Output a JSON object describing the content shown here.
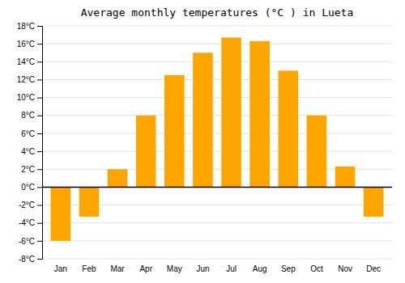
{
  "chart_data": {
    "type": "bar",
    "title": "Average monthly temperatures (°C ) in Lueta",
    "categories": [
      "Jan",
      "Feb",
      "Mar",
      "Apr",
      "May",
      "Jun",
      "Jul",
      "Aug",
      "Sep",
      "Oct",
      "Nov",
      "Dec"
    ],
    "values": [
      -6.0,
      -3.3,
      2.0,
      8.0,
      12.5,
      15.0,
      16.7,
      16.3,
      13.0,
      8.0,
      2.3,
      -3.3
    ],
    "color": "#FFA500",
    "ylim": [
      -8,
      18
    ],
    "yticks": [
      {
        "value": -8,
        "label": "-8°C"
      },
      {
        "value": -6,
        "label": "-6°C"
      },
      {
        "value": -4,
        "label": "-4°C"
      },
      {
        "value": -2,
        "label": "-2°C"
      },
      {
        "value": 0,
        "label": "0°C"
      },
      {
        "value": 2,
        "label": "2°C"
      },
      {
        "value": 4,
        "label": "4°C"
      },
      {
        "value": 6,
        "label": "6°C"
      },
      {
        "value": 8,
        "label": "8°C"
      },
      {
        "value": 10,
        "label": "10°C"
      },
      {
        "value": 12,
        "label": "12°C"
      },
      {
        "value": 14,
        "label": "14°C"
      },
      {
        "value": 16,
        "label": "16°C"
      },
      {
        "value": 18,
        "label": "18°C"
      }
    ],
    "grid": true
  }
}
